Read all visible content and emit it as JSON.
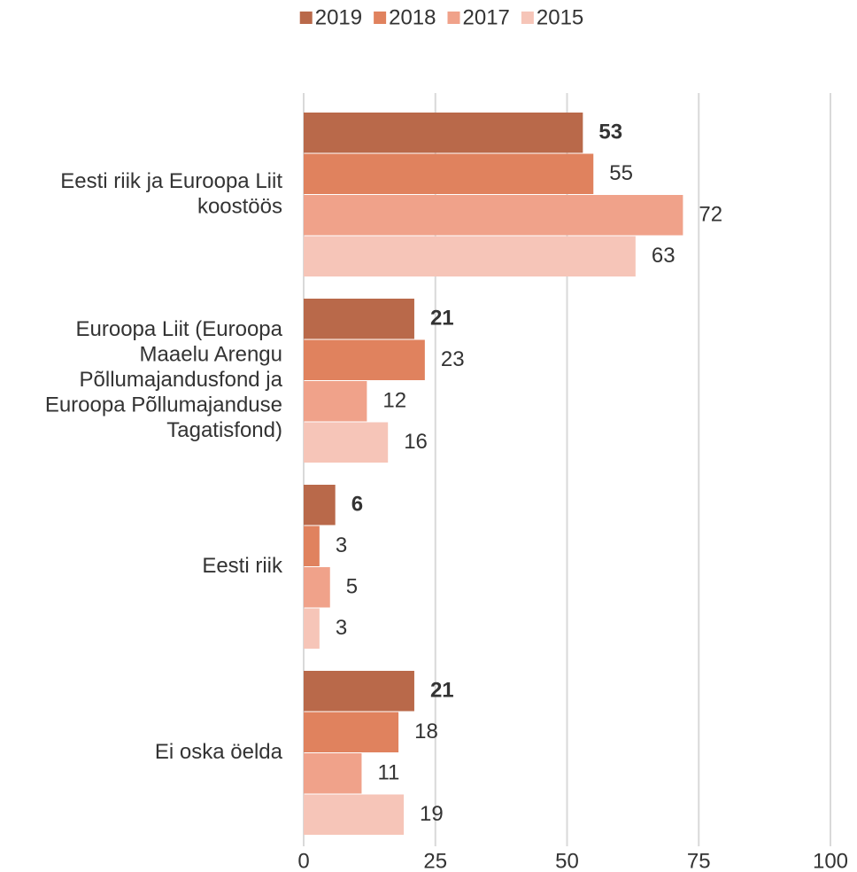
{
  "chart_data": {
    "type": "bar",
    "orientation": "horizontal",
    "categories": [
      "Eesti riik ja Euroopa Liit koostöös",
      "Euroopa Liit (Euroopa Maaelu Arengu Põllumajandusfond ja Euroopa Põllumajanduse Tagatisfond)",
      "Eesti riik",
      "Ei oska öelda"
    ],
    "series": [
      {
        "name": "2019",
        "color": "#b9694a",
        "values": [
          53,
          21,
          6,
          21
        ]
      },
      {
        "name": "2018",
        "color": "#e0825e",
        "values": [
          55,
          23,
          3,
          18
        ]
      },
      {
        "name": "2017",
        "color": "#f0a28a",
        "values": [
          72,
          12,
          5,
          11
        ]
      },
      {
        "name": "2015",
        "color": "#f6c5b8",
        "values": [
          63,
          16,
          3,
          19
        ]
      }
    ],
    "xlim": [
      0,
      100
    ],
    "xticks": [
      0,
      25,
      50,
      75,
      100
    ],
    "grid": true,
    "legend": "top"
  }
}
